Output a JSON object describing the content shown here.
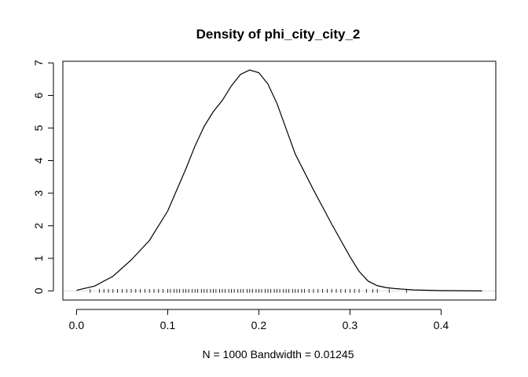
{
  "chart_data": {
    "type": "line",
    "title": "Density of phi_city_city_2",
    "xlabel": "N = 1000   Bandwidth = 0.01245",
    "ylabel": "",
    "xlim": [
      -0.015,
      0.46
    ],
    "ylim": [
      -0.28,
      7.05
    ],
    "x_ticks": [
      0.0,
      0.1,
      0.2,
      0.3,
      0.4
    ],
    "x_tick_labels": [
      "0.0",
      "0.1",
      "0.2",
      "0.3",
      "0.4"
    ],
    "y_ticks": [
      0,
      1,
      2,
      3,
      4,
      5,
      6,
      7
    ],
    "y_tick_labels": [
      "0",
      "1",
      "2",
      "3",
      "4",
      "5",
      "6",
      "7"
    ],
    "zero_line": true,
    "series": [
      {
        "x": [
          0.0,
          0.02,
          0.04,
          0.06,
          0.08,
          0.1,
          0.12,
          0.13,
          0.14,
          0.15,
          0.16,
          0.17,
          0.18,
          0.19,
          0.2,
          0.21,
          0.22,
          0.24,
          0.26,
          0.28,
          0.3,
          0.31,
          0.32,
          0.33,
          0.34,
          0.35,
          0.37,
          0.4,
          0.445
        ],
        "y": [
          0.02,
          0.15,
          0.45,
          0.95,
          1.55,
          2.45,
          3.75,
          4.45,
          5.05,
          5.5,
          5.85,
          6.3,
          6.65,
          6.78,
          6.7,
          6.35,
          5.75,
          4.2,
          3.1,
          2.05,
          1.05,
          0.6,
          0.3,
          0.16,
          0.1,
          0.07,
          0.03,
          0.01,
          0.0
        ]
      }
    ],
    "rug": [
      0.015,
      0.025,
      0.03,
      0.035,
      0.04,
      0.045,
      0.05,
      0.055,
      0.06,
      0.065,
      0.07,
      0.075,
      0.08,
      0.085,
      0.09,
      0.095,
      0.1,
      0.103,
      0.107,
      0.11,
      0.113,
      0.117,
      0.12,
      0.123,
      0.127,
      0.13,
      0.133,
      0.137,
      0.14,
      0.143,
      0.147,
      0.15,
      0.153,
      0.157,
      0.16,
      0.163,
      0.167,
      0.17,
      0.173,
      0.177,
      0.18,
      0.183,
      0.187,
      0.19,
      0.193,
      0.197,
      0.2,
      0.203,
      0.207,
      0.21,
      0.213,
      0.217,
      0.22,
      0.223,
      0.227,
      0.23,
      0.233,
      0.237,
      0.24,
      0.243,
      0.247,
      0.25,
      0.255,
      0.26,
      0.265,
      0.27,
      0.275,
      0.28,
      0.285,
      0.29,
      0.295,
      0.3,
      0.305,
      0.31,
      0.318,
      0.325,
      0.33,
      0.343,
      0.362
    ]
  }
}
